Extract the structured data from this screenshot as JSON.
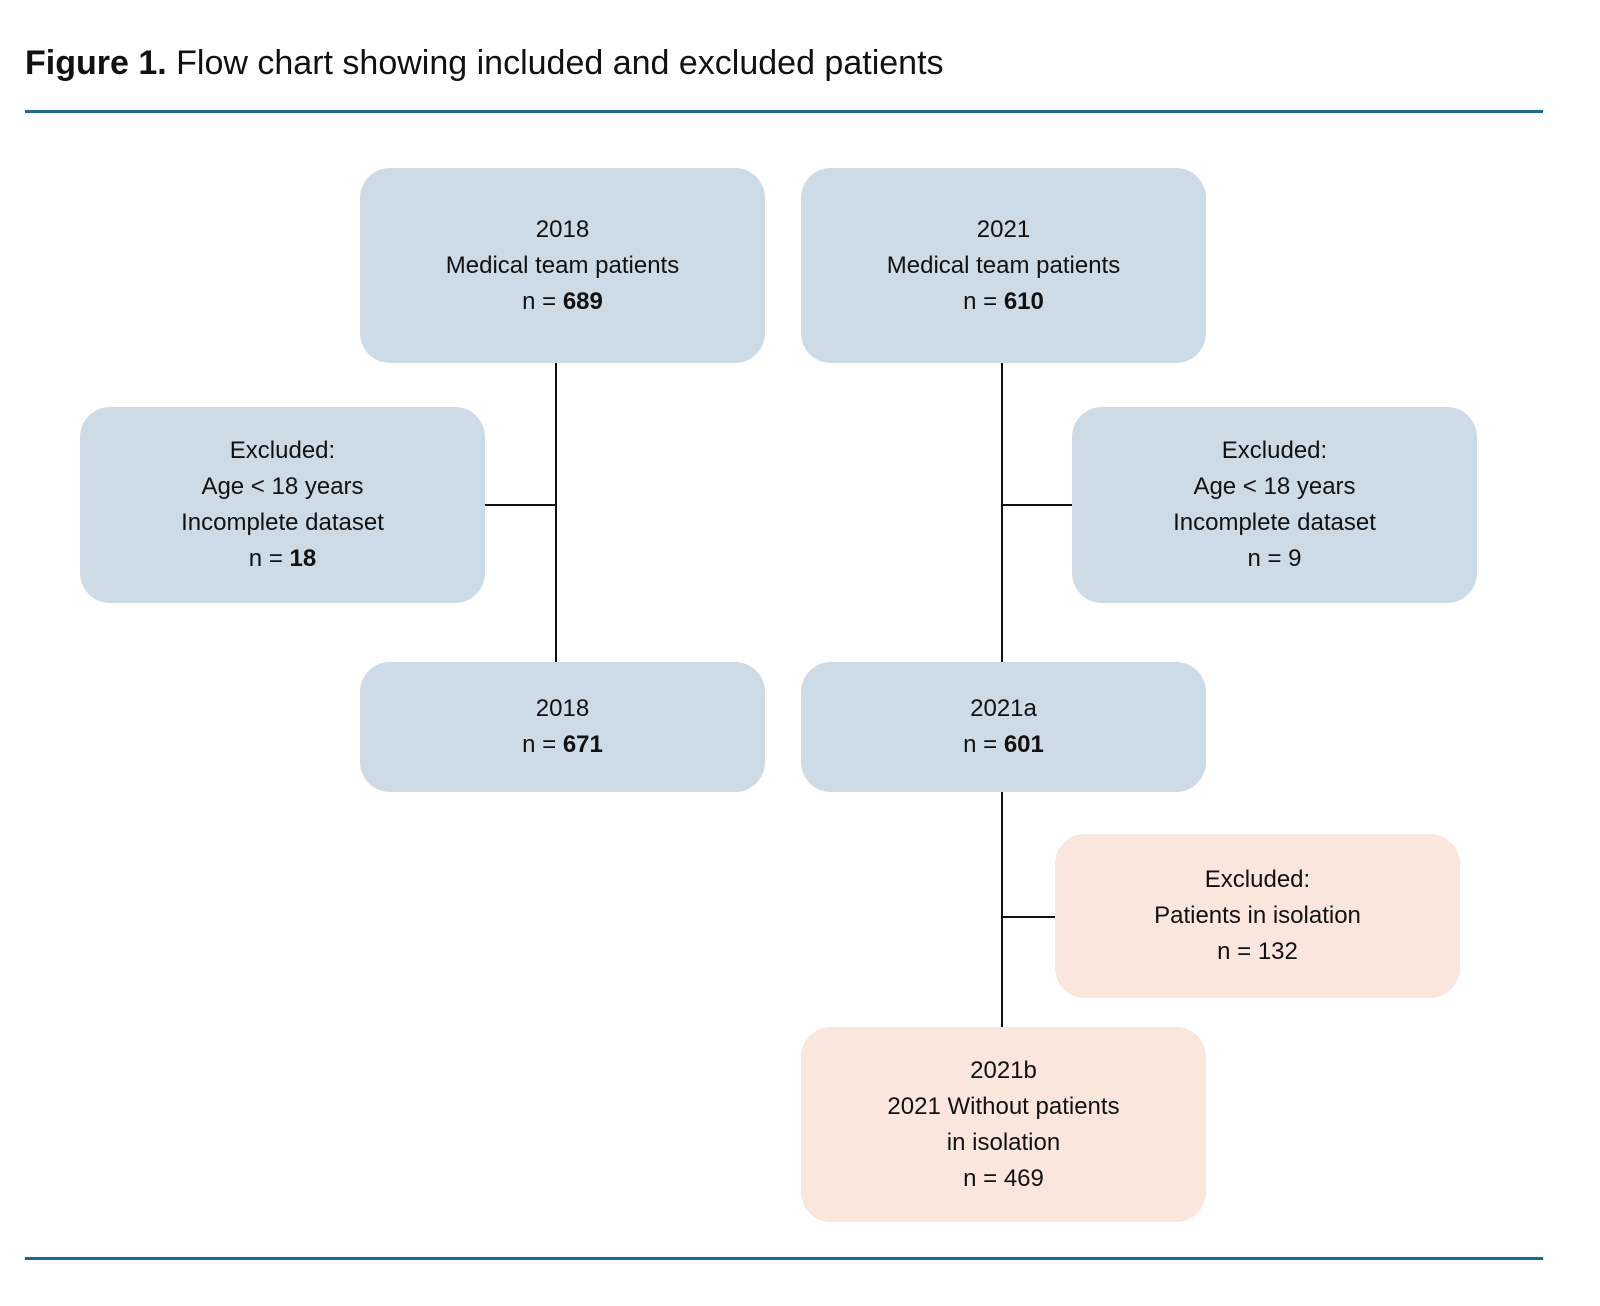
{
  "title": {
    "label": "Figure 1.",
    "text": "Flow chart showing included and excluded patients"
  },
  "colors": {
    "included_box": "#cddbe7",
    "isolation_box": "#fbe6de",
    "rule": "#1f6690",
    "connector": "#111111"
  },
  "boxes": {
    "start_2018": {
      "lines": [
        "2018",
        "Medical team patients"
      ],
      "n_prefix": "n = ",
      "n": "689",
      "n_bold": true
    },
    "start_2021": {
      "lines": [
        "2021",
        "Medical team patients"
      ],
      "n_prefix": "n = ",
      "n": "610",
      "n_bold": true
    },
    "excluded_2018": {
      "lines": [
        "Excluded:",
        "Age < 18 years",
        "Incomplete dataset"
      ],
      "n_prefix": "n = ",
      "n": "18",
      "n_bold": true
    },
    "excluded_2021": {
      "lines": [
        "Excluded:",
        "Age < 18 years",
        "Incomplete dataset"
      ],
      "n_prefix": "n = ",
      "n": "9",
      "n_bold": false
    },
    "final_2018": {
      "lines": [
        "2018"
      ],
      "n_prefix": "n = ",
      "n": "671",
      "n_bold": true
    },
    "cohort_2021a": {
      "lines": [
        "2021a"
      ],
      "n_prefix": "n = ",
      "n": "601",
      "n_bold": true
    },
    "excluded_isolation": {
      "lines": [
        "Excluded:",
        "Patients in isolation"
      ],
      "n_prefix": "n = ",
      "n": "132",
      "n_bold": false
    },
    "cohort_2021b": {
      "lines": [
        "2021b",
        "2021 Without patients",
        "in isolation"
      ],
      "n_prefix": "n = ",
      "n": "469",
      "n_bold": false
    }
  }
}
